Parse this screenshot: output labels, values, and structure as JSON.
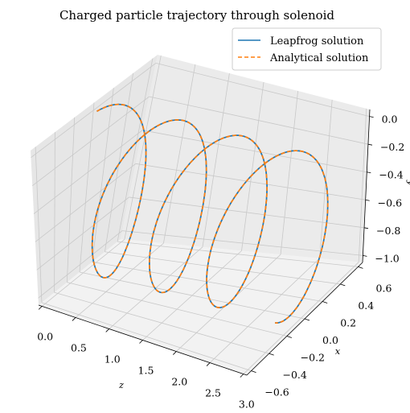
{
  "chart_data": {
    "type": "line",
    "title": "Charged particle trajectory through solenoid",
    "projection": "3d",
    "grid": true,
    "legend_location": "top-right",
    "axes": {
      "z": {
        "label": "z",
        "ticks": [
          "0.0",
          "0.5",
          "1.0",
          "1.5",
          "2.0",
          "2.5",
          "3.0"
        ],
        "range": [
          -0.05,
          3.05
        ]
      },
      "x": {
        "label": "x",
        "ticks": [
          "−0.6",
          "−0.4",
          "−0.2",
          "0.0",
          "0.2",
          "0.4",
          "0.6"
        ],
        "range": [
          -0.65,
          0.65
        ]
      },
      "y": {
        "label": "y",
        "ticks": [
          "−1.0",
          "−0.8",
          "−0.6",
          "−0.4",
          "−0.2",
          "0.0"
        ],
        "range": [
          -1.05,
          0.05
        ]
      }
    },
    "trajectory": {
      "z_range": [
        0.0,
        3.0
      ],
      "turns": 3.6,
      "center_x": 0.0,
      "center_y": -0.5,
      "radius": 0.5,
      "start_phase_deg": 90
    },
    "series": [
      {
        "name": "Leapfrog solution",
        "color": "#1f77b4",
        "style": "solid"
      },
      {
        "name": "Analytical solution",
        "color": "#ff7f0e",
        "style": "dashed"
      }
    ]
  }
}
